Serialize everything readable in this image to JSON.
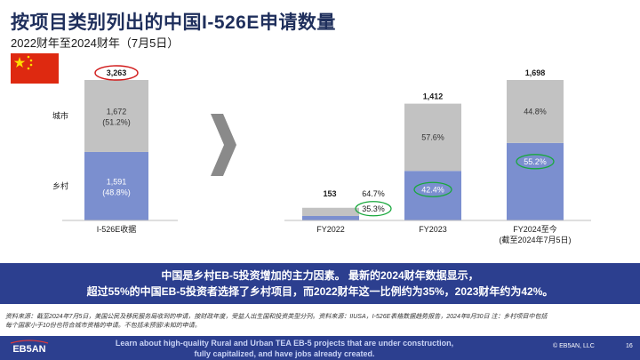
{
  "title": "按项目类别列出的中国I-526E申请数量",
  "subtitle": "2022财年至2024财年（7月5日）",
  "colors": {
    "rural": "#7b8fcf",
    "urban": "#c2c2c2",
    "banner": "#2c3f8f",
    "title": "#1f2f5c",
    "highlight_ellipse_red": "#d11a1a",
    "highlight_ellipse_green": "#18a83c"
  },
  "chart_data": [
    {
      "type": "bar",
      "stacked": true,
      "categories": [
        "I-526E收据"
      ],
      "row_labels": [
        "城市",
        "乡村"
      ],
      "series": [
        {
          "name": "乡村",
          "values": [
            1591
          ],
          "labels": [
            "1,591\n(48.8%)"
          ]
        },
        {
          "name": "城市",
          "values": [
            1672
          ],
          "labels": [
            "1,672\n(51.2%)"
          ]
        }
      ],
      "totals": [
        "3,263"
      ]
    },
    {
      "type": "bar",
      "stacked": true,
      "categories": [
        "FY2022",
        "FY2023",
        "FY2024至今"
      ],
      "category_sublabels": [
        "",
        "",
        "(截至2024年7月5日)"
      ],
      "series": [
        {
          "name": "乡村",
          "values": [
            54,
            599,
            937
          ],
          "labels": [
            "35.3%",
            "42.4%",
            "55.2%"
          ]
        },
        {
          "name": "城市",
          "values": [
            99,
            813,
            761
          ],
          "labels": [
            "64.7%",
            "57.6%",
            "44.8%"
          ]
        }
      ],
      "totals": [
        "153",
        "1,412",
        "1,698"
      ],
      "ylim": [
        0,
        1800
      ]
    }
  ],
  "banner": {
    "line1": "中国是乡村EB-5投资增加的主力因素。 最新的2024财年数据显示，",
    "line2": "超过55%的中国EB-5投资者选择了乡村项目，而2022财年这一比例约为35%，2023财年约为42%。"
  },
  "footnote": {
    "line1": "资料来源：截至2024年7月5日，美国公民及移民服务局收到的申请，按财政年度，受益人出生国和投资类型分列。资料来源：IIUSA，I-526E表格数据趋势报告，2024年8月30日 注：乡村项目中包括",
    "line2": "每个国家小于10份也符合城市资格的申请。不包括未预留/未知的申请。"
  },
  "footer": {
    "logo_text": "EB5AN",
    "line1": "Learn about high-quality Rural and Urban TEA EB-5 projects that are under construction,",
    "line2": "fully capitalized, and have jobs already created.",
    "copyright": "© EB5AN, LLC",
    "page_number": "16"
  }
}
